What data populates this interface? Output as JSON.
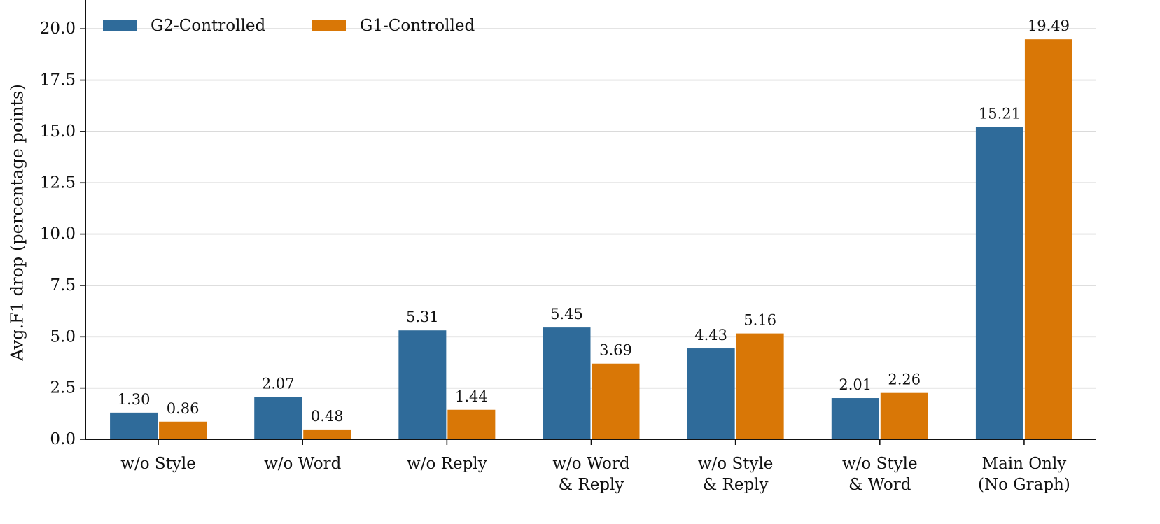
{
  "chart_data": {
    "type": "bar",
    "ylabel": "Avg.F1 drop (percentage points)",
    "ylim": [
      0,
      21.2
    ],
    "yticks": [
      "0.0",
      "2.5",
      "5.0",
      "7.5",
      "10.0",
      "12.5",
      "15.0",
      "17.5",
      "20.0"
    ],
    "grid": "horizontal",
    "legend_position": "top-left",
    "categories": [
      [
        "w/o Style"
      ],
      [
        "w/o Word"
      ],
      [
        "w/o Reply"
      ],
      [
        "w/o Word",
        "& Reply"
      ],
      [
        "w/o Style",
        "& Reply"
      ],
      [
        "w/o Style",
        "& Word"
      ],
      [
        "Main Only",
        "(No Graph)"
      ]
    ],
    "series": [
      {
        "name": "G2-Controlled",
        "color": "#2f6b9a",
        "values": [
          1.3,
          2.07,
          5.31,
          5.45,
          4.43,
          2.01,
          15.21
        ],
        "labels": [
          "1.30",
          "2.07",
          "5.31",
          "5.45",
          "4.43",
          "2.01",
          "15.21"
        ]
      },
      {
        "name": "G1-Controlled",
        "color": "#d97706",
        "values": [
          0.86,
          0.48,
          1.44,
          3.69,
          5.16,
          2.26,
          19.49
        ],
        "labels": [
          "0.86",
          "0.48",
          "1.44",
          "3.69",
          "5.16",
          "2.26",
          "19.49"
        ]
      }
    ]
  }
}
